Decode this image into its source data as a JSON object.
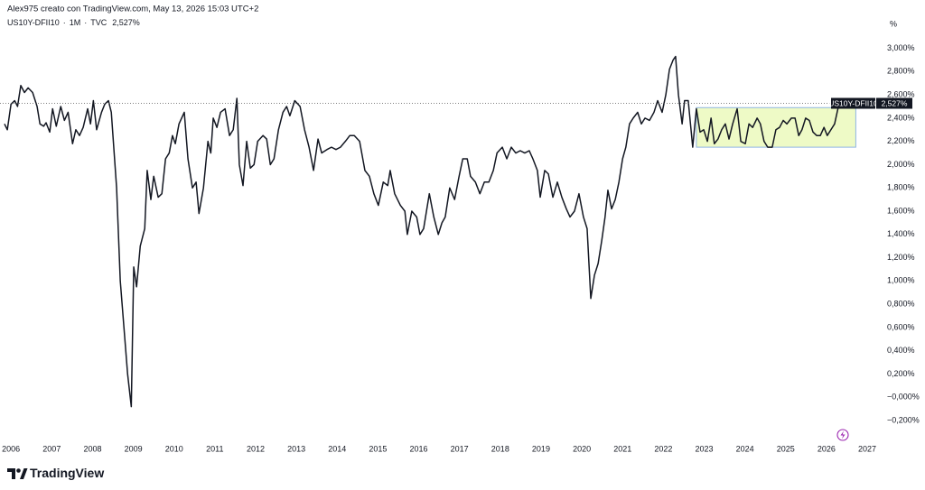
{
  "header": "Alex975 creato con TradingView.com, May 13, 2026 15:03 UTC+2",
  "brand": "TradingView",
  "chart_data": {
    "type": "line",
    "legend": {
      "interval": "1M",
      "source": "TVC",
      "separator": "·"
    },
    "y_unit": "%",
    "series": [
      {
        "name": "US10Y-DFII10",
        "color": "#131722",
        "last_label": "2,527%",
        "x": [
          2005.84,
          2005.91,
          2006.0,
          2006.09,
          2006.16,
          2006.24,
          2006.33,
          2006.42,
          2006.53,
          2006.64,
          2006.71,
          2006.8,
          2006.86,
          2006.95,
          2007.02,
          2007.11,
          2007.22,
          2007.31,
          2007.4,
          2007.51,
          2007.59,
          2007.68,
          2007.77,
          2007.88,
          2007.95,
          2008.02,
          2008.1,
          2008.22,
          2008.3,
          2008.39,
          2008.46,
          2008.53,
          2008.59,
          2008.68,
          2008.77,
          2008.86,
          2008.95,
          2009.01,
          2009.08,
          2009.17,
          2009.28,
          2009.34,
          2009.43,
          2009.5,
          2009.61,
          2009.7,
          2009.79,
          2009.88,
          2009.96,
          2010.03,
          2010.12,
          2010.25,
          2010.34,
          2010.45,
          2010.54,
          2010.61,
          2010.72,
          2010.83,
          2010.9,
          2010.96,
          2011.05,
          2011.14,
          2011.25,
          2011.36,
          2011.45,
          2011.54,
          2011.6,
          2011.69,
          2011.78,
          2011.87,
          2011.96,
          2012.05,
          2012.18,
          2012.27,
          2012.36,
          2012.45,
          2012.56,
          2012.67,
          2012.76,
          2012.84,
          2012.96,
          2013.09,
          2013.2,
          2013.31,
          2013.42,
          2013.53,
          2013.62,
          2013.75,
          2013.86,
          2013.97,
          2014.08,
          2014.2,
          2014.31,
          2014.42,
          2014.55,
          2014.68,
          2014.79,
          2014.9,
          2015.01,
          2015.13,
          2015.24,
          2015.3,
          2015.41,
          2015.55,
          2015.66,
          2015.72,
          2015.83,
          2015.95,
          2016.03,
          2016.12,
          2016.26,
          2016.37,
          2016.48,
          2016.57,
          2016.65,
          2016.76,
          2016.88,
          2016.99,
          2017.08,
          2017.19,
          2017.27,
          2017.39,
          2017.5,
          2017.61,
          2017.72,
          2017.83,
          2017.92,
          2018.05,
          2018.16,
          2018.27,
          2018.38,
          2018.49,
          2018.6,
          2018.71,
          2018.8,
          2018.91,
          2018.98,
          2019.09,
          2019.18,
          2019.29,
          2019.4,
          2019.51,
          2019.62,
          2019.71,
          2019.82,
          2019.93,
          2020.04,
          2020.13,
          2020.22,
          2020.31,
          2020.4,
          2020.49,
          2020.57,
          2020.64,
          2020.73,
          2020.82,
          2020.91,
          2021.0,
          2021.08,
          2021.17,
          2021.26,
          2021.37,
          2021.46,
          2021.55,
          2021.66,
          2021.77,
          2021.86,
          2021.97,
          2022.06,
          2022.15,
          2022.24,
          2022.3,
          2022.37,
          2022.46,
          2022.52,
          2022.61,
          2022.72,
          2022.81,
          2022.9,
          2022.99,
          2023.08,
          2023.17,
          2023.25,
          2023.34,
          2023.43,
          2023.52,
          2023.61,
          2023.7,
          2023.81,
          2023.9,
          2024.01,
          2024.1,
          2024.19,
          2024.3,
          2024.38,
          2024.47,
          2024.56,
          2024.67,
          2024.76,
          2024.85,
          2024.94,
          2025.03,
          2025.14,
          2025.23,
          2025.32,
          2025.4,
          2025.49,
          2025.58,
          2025.67,
          2025.76,
          2025.85,
          2025.94,
          2026.02,
          2026.11,
          2026.2,
          2026.31
        ],
        "values": [
          2.35,
          2.3,
          2.52,
          2.55,
          2.5,
          2.68,
          2.62,
          2.66,
          2.62,
          2.5,
          2.35,
          2.33,
          2.36,
          2.28,
          2.48,
          2.33,
          2.5,
          2.38,
          2.45,
          2.18,
          2.3,
          2.25,
          2.32,
          2.48,
          2.35,
          2.55,
          2.3,
          2.45,
          2.52,
          2.55,
          2.45,
          2.1,
          1.8,
          1.0,
          0.6,
          0.2,
          -0.08,
          1.12,
          0.95,
          1.3,
          1.45,
          1.95,
          1.7,
          1.9,
          1.72,
          1.75,
          2.05,
          2.1,
          2.25,
          2.18,
          2.35,
          2.45,
          2.05,
          1.8,
          1.85,
          1.58,
          1.8,
          2.2,
          2.1,
          2.4,
          2.32,
          2.45,
          2.48,
          2.25,
          2.3,
          2.57,
          2.0,
          1.82,
          2.2,
          1.97,
          2.0,
          2.2,
          2.25,
          2.22,
          2.0,
          2.05,
          2.3,
          2.45,
          2.5,
          2.42,
          2.55,
          2.5,
          2.3,
          2.15,
          1.95,
          2.22,
          2.1,
          2.13,
          2.15,
          2.13,
          2.15,
          2.2,
          2.25,
          2.25,
          2.2,
          1.95,
          1.9,
          1.75,
          1.65,
          1.85,
          1.82,
          1.95,
          1.75,
          1.65,
          1.6,
          1.4,
          1.6,
          1.55,
          1.4,
          1.45,
          1.75,
          1.55,
          1.4,
          1.5,
          1.55,
          1.8,
          1.7,
          1.9,
          2.05,
          2.05,
          1.9,
          1.85,
          1.75,
          1.85,
          1.85,
          1.95,
          2.1,
          2.15,
          2.05,
          2.15,
          2.1,
          2.12,
          2.1,
          2.12,
          2.05,
          1.95,
          1.72,
          1.95,
          1.92,
          1.72,
          1.85,
          1.72,
          1.62,
          1.55,
          1.6,
          1.75,
          1.55,
          1.45,
          0.85,
          1.05,
          1.15,
          1.35,
          1.55,
          1.78,
          1.62,
          1.7,
          1.85,
          2.05,
          2.15,
          2.35,
          2.4,
          2.45,
          2.35,
          2.4,
          2.38,
          2.45,
          2.55,
          2.45,
          2.6,
          2.82,
          2.9,
          2.93,
          2.6,
          2.35,
          2.55,
          2.55,
          2.15,
          2.48,
          2.28,
          2.3,
          2.2,
          2.4,
          2.18,
          2.22,
          2.3,
          2.35,
          2.22,
          2.35,
          2.48,
          2.2,
          2.18,
          2.35,
          2.32,
          2.4,
          2.35,
          2.2,
          2.15,
          2.15,
          2.3,
          2.32,
          2.38,
          2.35,
          2.4,
          2.4,
          2.25,
          2.3,
          2.4,
          2.38,
          2.28,
          2.25,
          2.25,
          2.32,
          2.25,
          2.3,
          2.35,
          2.527
        ]
      }
    ],
    "xlim": [
      2005.73,
      2027.11
    ],
    "xticks": [
      2006,
      2007,
      2008,
      2009,
      2010,
      2011,
      2012,
      2013,
      2014,
      2015,
      2016,
      2017,
      2018,
      2019,
      2020,
      2021,
      2022,
      2023,
      2024,
      2025,
      2026,
      2027
    ],
    "ylim": [
      -0.37,
      3.26
    ],
    "yticks": [
      {
        "value": 3.0,
        "label": "3,000%"
      },
      {
        "value": 2.8,
        "label": "2,800%"
      },
      {
        "value": 2.6,
        "label": "2,600%"
      },
      {
        "value": 2.4,
        "label": "2,400%"
      },
      {
        "value": 2.2,
        "label": "2,200%"
      },
      {
        "value": 2.0,
        "label": "2,000%"
      },
      {
        "value": 1.8,
        "label": "1,800%"
      },
      {
        "value": 1.6,
        "label": "1,600%"
      },
      {
        "value": 1.4,
        "label": "1,400%"
      },
      {
        "value": 1.2,
        "label": "1,200%"
      },
      {
        "value": 1.0,
        "label": "1,000%"
      },
      {
        "value": 0.8,
        "label": "0,800%"
      },
      {
        "value": 0.6,
        "label": "0,600%"
      },
      {
        "value": 0.4,
        "label": "0,400%"
      },
      {
        "value": 0.2,
        "label": "0,200%"
      },
      {
        "value": 0,
        "label": "−0,000%"
      },
      {
        "value": -0.2,
        "label": "−0,200%"
      }
    ],
    "range_box": {
      "x": [
        2022.81,
        2026.72
      ],
      "y": [
        2.15,
        2.49
      ],
      "color": "#eefac6",
      "border": "#8fb4e3"
    }
  }
}
